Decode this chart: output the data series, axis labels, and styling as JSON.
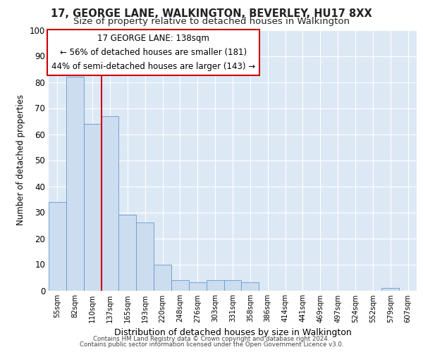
{
  "title1": "17, GEORGE LANE, WALKINGTON, BEVERLEY, HU17 8XX",
  "title2": "Size of property relative to detached houses in Walkington",
  "xlabel": "Distribution of detached houses by size in Walkington",
  "ylabel": "Number of detached properties",
  "categories": [
    "55sqm",
    "82sqm",
    "110sqm",
    "137sqm",
    "165sqm",
    "193sqm",
    "220sqm",
    "248sqm",
    "276sqm",
    "303sqm",
    "331sqm",
    "358sqm",
    "386sqm",
    "414sqm",
    "441sqm",
    "469sqm",
    "497sqm",
    "524sqm",
    "552sqm",
    "579sqm",
    "607sqm"
  ],
  "values": [
    34,
    82,
    64,
    67,
    29,
    26,
    10,
    4,
    3,
    4,
    4,
    3,
    0,
    0,
    0,
    0,
    0,
    0,
    0,
    1,
    0
  ],
  "bar_color": "#ccddf0",
  "bar_edge_color": "#6699cc",
  "vline_color": "#cc0000",
  "annotation_title": "17 GEORGE LANE: 138sqm",
  "annotation_line1": "← 56% of detached houses are smaller (181)",
  "annotation_line2": "44% of semi-detached houses are larger (143) →",
  "annotation_box_color": "#ffffff",
  "annotation_box_edge": "#cc0000",
  "ylim": [
    0,
    100
  ],
  "yticks": [
    0,
    10,
    20,
    30,
    40,
    50,
    60,
    70,
    80,
    90,
    100
  ],
  "footer1": "Contains HM Land Registry data © Crown copyright and database right 2024.",
  "footer2": "Contains public sector information licensed under the Open Government Licence v3.0.",
  "bg_color": "#dde8f5",
  "title1_fontsize": 10.5,
  "title2_fontsize": 9.5
}
